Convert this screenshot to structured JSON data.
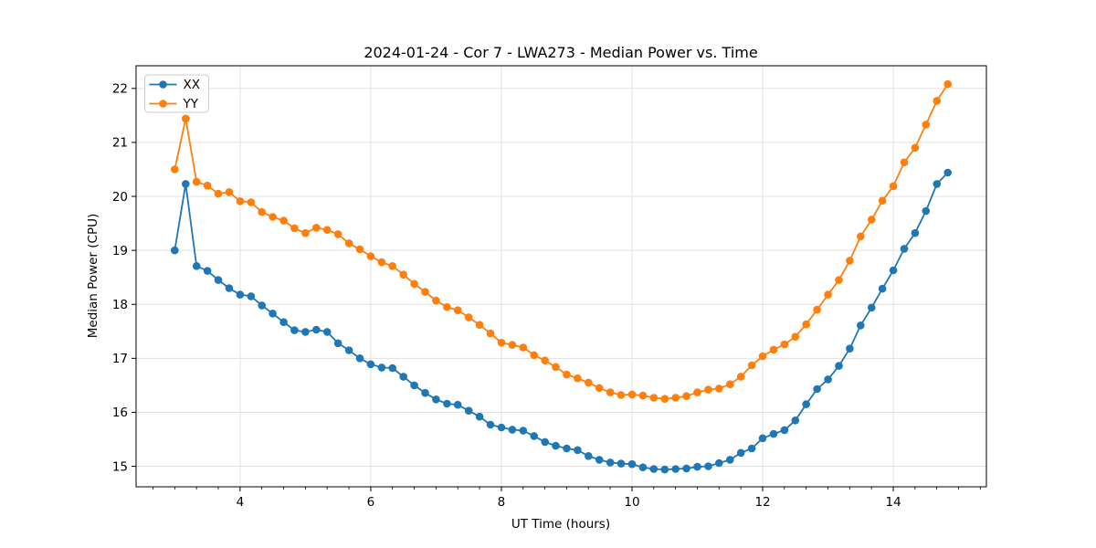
{
  "chart_data": {
    "type": "line",
    "title": "2024-01-24 - Cor 7 - LWA273 - Median Power vs. Time",
    "xlabel": "UT Time (hours)",
    "ylabel": "Median Power (CPU)",
    "xlim": [
      2.408,
      15.425
    ],
    "ylim": [
      14.62,
      22.42
    ],
    "xticks": [
      4,
      6,
      8,
      10,
      12,
      14
    ],
    "yticks": [
      15,
      16,
      17,
      18,
      19,
      20,
      21,
      22
    ],
    "x_minor_step": 0.3333,
    "grid": true,
    "grid_color": "#e0e0e0",
    "spine_color": "#000000",
    "background": "#ffffff",
    "legend_position": "upper-left",
    "x": [
      3.0,
      3.167,
      3.333,
      3.5,
      3.667,
      3.833,
      4.0,
      4.167,
      4.333,
      4.5,
      4.667,
      4.833,
      5.0,
      5.167,
      5.333,
      5.5,
      5.667,
      5.833,
      6.0,
      6.167,
      6.333,
      6.5,
      6.667,
      6.833,
      7.0,
      7.167,
      7.333,
      7.5,
      7.667,
      7.833,
      8.0,
      8.167,
      8.333,
      8.5,
      8.667,
      8.833,
      9.0,
      9.167,
      9.333,
      9.5,
      9.667,
      9.833,
      10.0,
      10.167,
      10.333,
      10.5,
      10.667,
      10.833,
      11.0,
      11.167,
      11.333,
      11.5,
      11.667,
      11.833,
      12.0,
      12.167,
      12.333,
      12.5,
      12.667,
      12.833,
      13.0,
      13.167,
      13.333,
      13.5,
      13.667,
      13.833,
      14.0,
      14.167,
      14.333,
      14.5,
      14.667,
      14.833
    ],
    "series": [
      {
        "name": "XX",
        "color": "#1f77b4",
        "values": [
          19.0,
          20.23,
          18.71,
          18.62,
          18.45,
          18.3,
          18.18,
          18.15,
          17.98,
          17.83,
          17.67,
          17.52,
          17.49,
          17.53,
          17.49,
          17.28,
          17.15,
          17.0,
          16.89,
          16.83,
          16.82,
          16.66,
          16.5,
          16.36,
          16.24,
          16.16,
          16.14,
          16.03,
          15.92,
          15.77,
          15.72,
          15.68,
          15.66,
          15.56,
          15.45,
          15.38,
          15.33,
          15.3,
          15.19,
          15.12,
          15.07,
          15.05,
          15.04,
          14.98,
          14.95,
          14.94,
          14.95,
          14.96,
          14.99,
          15.0,
          15.06,
          15.12,
          15.25,
          15.33,
          15.52,
          15.6,
          15.67,
          15.85,
          16.15,
          16.43,
          16.61,
          16.86,
          17.18,
          17.61,
          17.94,
          18.29,
          18.63,
          19.03,
          19.32,
          19.73,
          20.23,
          20.44
        ]
      },
      {
        "name": "YY",
        "color": "#ff7f0e",
        "values": [
          20.5,
          21.44,
          20.27,
          20.2,
          20.05,
          20.08,
          19.91,
          19.89,
          19.71,
          19.62,
          19.55,
          19.41,
          19.32,
          19.42,
          19.38,
          19.3,
          19.13,
          19.02,
          18.89,
          18.78,
          18.71,
          18.55,
          18.38,
          18.23,
          18.07,
          17.95,
          17.89,
          17.76,
          17.62,
          17.46,
          17.29,
          17.25,
          17.2,
          17.06,
          16.96,
          16.84,
          16.7,
          16.63,
          16.55,
          16.45,
          16.37,
          16.32,
          16.33,
          16.31,
          16.27,
          16.25,
          16.27,
          16.3,
          16.37,
          16.42,
          16.44,
          16.52,
          16.66,
          16.87,
          17.04,
          17.16,
          17.26,
          17.4,
          17.63,
          17.9,
          18.18,
          18.45,
          18.81,
          19.26,
          19.57,
          19.92,
          20.19,
          20.63,
          20.9,
          21.33,
          21.77,
          22.08
        ]
      }
    ]
  }
}
